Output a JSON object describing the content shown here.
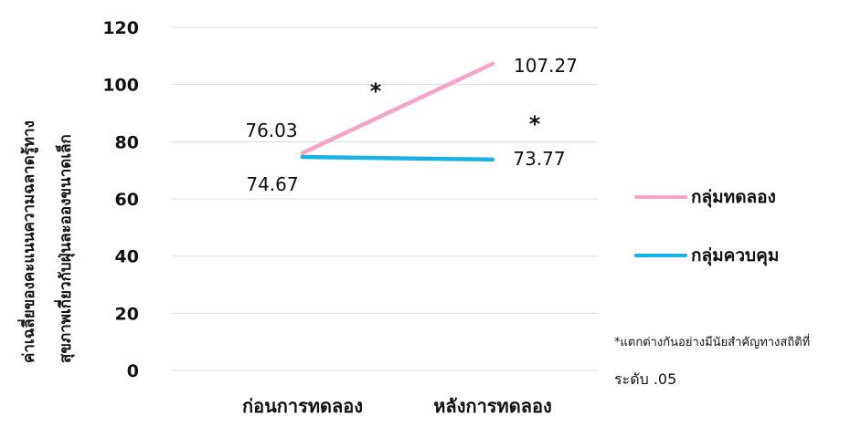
{
  "chart_data": {
    "type": "line",
    "title": "",
    "xlabel": "",
    "ylabel_lines": [
      "ค่าเฉลี่ยของคะแนนความฉลาดรู้ทาง",
      "สุขภาพเกี่ยวกับฝุ่นละอองขนาดเล็ก"
    ],
    "categories": [
      "ก่อนการทดลอง",
      "หลังการทดลอง"
    ],
    "ylim": [
      0,
      120
    ],
    "yticks": [
      0,
      20,
      40,
      60,
      80,
      100,
      120
    ],
    "grid": true,
    "legend_position": "right",
    "series": [
      {
        "name": "กลุ่มทดลอง",
        "color": "#f4a3c9",
        "values": [
          76.03,
          107.27
        ],
        "labels": [
          "76.03",
          "107.27"
        ],
        "significance_marker": "*"
      },
      {
        "name": "กลุ่มควบคุม",
        "color": "#19b2e6",
        "values": [
          74.67,
          73.77
        ],
        "labels": [
          "74.67",
          "73.77"
        ],
        "significance_marker": "*"
      }
    ],
    "footnote_lines": [
      "*แตกต่างกันอย่างมีนัยสำคัญทางสถิติที่",
      "ระดับ .05"
    ]
  }
}
